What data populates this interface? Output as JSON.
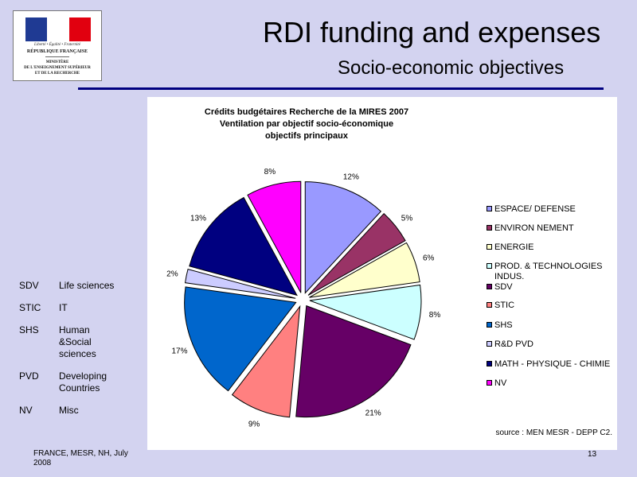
{
  "logo": {
    "motto": "Liberté • Égalité • Fraternité",
    "republic": "RÉPUBLIQUE FRANÇAISE",
    "ministry": "MINISTÈRE\nDE L'ENSEIGNEMENT SUPÉRIEUR\nET DE LA RECHERCHE",
    "flag_colors": [
      "#1f3a93",
      "#ffffff",
      "#e1000f"
    ]
  },
  "slide": {
    "title": "RDI funding and expenses",
    "subtitle": "Socio-economic objectives",
    "footer": "FRANCE, MESR, NH, July 2008",
    "page_number": "13",
    "accent_color": "#000080"
  },
  "abbreviations": [
    {
      "code": "SDV",
      "meaning": "Life sciences"
    },
    {
      "code": "STIC",
      "meaning": "IT"
    },
    {
      "code": "SHS",
      "meaning": "Human\n&Social\nsciences"
    },
    {
      "code": "PVD",
      "meaning": "Developing\nCountries"
    },
    {
      "code": "NV",
      "meaning": "Misc"
    }
  ],
  "chart_data": {
    "type": "pie",
    "title": "Crédits budgétaires Recherche de la MIRES 2007",
    "subtitle": [
      "Ventilation par objectif socio-économique",
      "objectifs principaux"
    ],
    "categories": [
      "ESPACE/  DEFENSE",
      "ENVIRON NEMENT",
      "ENERGIE",
      "PROD. & TECHNOLOGIES INDUS.",
      "SDV",
      "STIC",
      "SHS",
      "R&D PVD",
      "MATH - PHYSIQUE - CHIMIE",
      "NV"
    ],
    "values": [
      12,
      5,
      6,
      8,
      21,
      9,
      17,
      2,
      13,
      8
    ],
    "labels": [
      "12%",
      "5%",
      "6%",
      "8%",
      "21%",
      "9%",
      "17%",
      "2%",
      "13%",
      "8%"
    ],
    "colors": [
      "#9999ff",
      "#993366",
      "#ffffcc",
      "#ccffff",
      "#660066",
      "#ff8080",
      "#0066cc",
      "#ccccff",
      "#000080",
      "#ff00ff"
    ],
    "legend_position": "right",
    "exploded": true,
    "source": "source : MEN MESR - DEPP C2."
  }
}
